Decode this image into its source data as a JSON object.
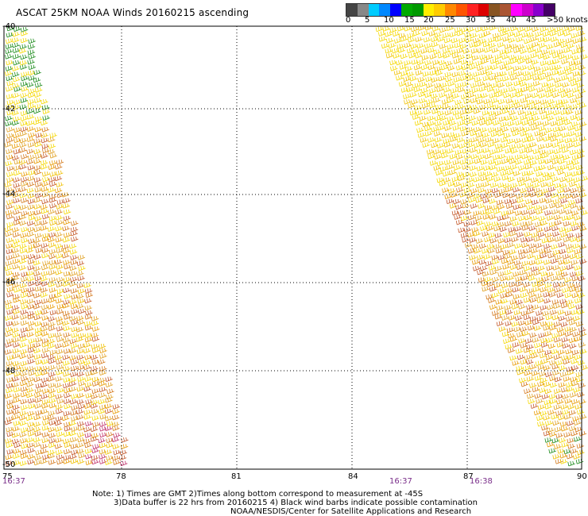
{
  "title": "ASCAT 25KM NOAA Winds 20160215 ascending",
  "legend": {
    "colors": [
      "#444444",
      "#888888",
      "#00ccff",
      "#0088ff",
      "#0000ff",
      "#00aa00",
      "#009900",
      "#ffee00",
      "#ffcc00",
      "#ff8800",
      "#ff5500",
      "#ff2222",
      "#dd0000",
      "#885522",
      "#aa5533",
      "#ff00ff",
      "#cc00cc",
      "#8800cc",
      "#440066"
    ],
    "labels": [
      "0",
      "5",
      "10",
      "15",
      "20",
      "25",
      "30",
      "35",
      "40",
      "45",
      ">50 knots"
    ]
  },
  "map": {
    "lat_labels": [
      "-40",
      "-42",
      "-44",
      "-46",
      "-48",
      "-50"
    ],
    "lon_labels": [
      "75",
      "78",
      "81",
      "84",
      "87",
      "90"
    ],
    "times": [
      "16:37",
      "16:37",
      "16:38"
    ]
  },
  "notes": {
    "line1": "Note: 1) Times are GMT 2)Times along bottom correspond to measurement at -45S",
    "line2": "3)Data buffer is 22 hrs from 20160215 4) Black wind barbs indicate possible contamination",
    "line3": "NOAA/NESDIS/Center for Satellite Applications and Research"
  }
}
